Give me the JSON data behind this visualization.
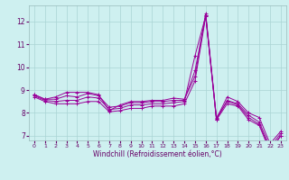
{
  "xlabel": "Windchill (Refroidissement éolien,°C)",
  "background_color": "#cef0f0",
  "line_color": "#990099",
  "grid_color": "#aad4d4",
  "x_data": [
    0,
    1,
    2,
    3,
    4,
    5,
    6,
    7,
    8,
    9,
    10,
    11,
    12,
    13,
    14,
    15,
    16,
    17,
    18,
    19,
    20,
    21,
    22,
    23
  ],
  "lines": [
    [
      8.8,
      8.6,
      8.7,
      8.9,
      8.9,
      8.9,
      8.8,
      8.1,
      8.35,
      8.5,
      8.5,
      8.55,
      8.55,
      8.65,
      8.6,
      9.6,
      12.35,
      7.75,
      8.7,
      8.5,
      8.0,
      7.8,
      6.65,
      7.2
    ],
    [
      8.8,
      8.6,
      8.6,
      8.75,
      8.7,
      8.85,
      8.75,
      8.25,
      8.3,
      8.45,
      8.45,
      8.5,
      8.5,
      8.55,
      8.55,
      9.85,
      12.25,
      7.7,
      8.55,
      8.4,
      7.9,
      7.6,
      6.5,
      7.1
    ],
    [
      8.75,
      8.55,
      8.5,
      8.55,
      8.55,
      8.7,
      8.65,
      8.15,
      8.2,
      8.35,
      8.35,
      8.4,
      8.4,
      8.45,
      8.5,
      10.5,
      12.25,
      7.8,
      8.5,
      8.35,
      7.8,
      7.5,
      6.4,
      7.0
    ],
    [
      8.7,
      8.5,
      8.4,
      8.4,
      8.4,
      8.5,
      8.5,
      8.05,
      8.1,
      8.2,
      8.2,
      8.3,
      8.3,
      8.3,
      8.4,
      9.4,
      12.22,
      7.7,
      8.4,
      8.3,
      7.7,
      7.45,
      6.3,
      7.0
    ]
  ],
  "ylim": [
    6.8,
    12.7
  ],
  "yticks": [
    7,
    8,
    9,
    10,
    11,
    12
  ],
  "xlim": [
    -0.5,
    23.5
  ],
  "xticks": [
    0,
    1,
    2,
    3,
    4,
    5,
    6,
    7,
    8,
    9,
    10,
    11,
    12,
    13,
    14,
    15,
    16,
    17,
    18,
    19,
    20,
    21,
    22,
    23
  ]
}
